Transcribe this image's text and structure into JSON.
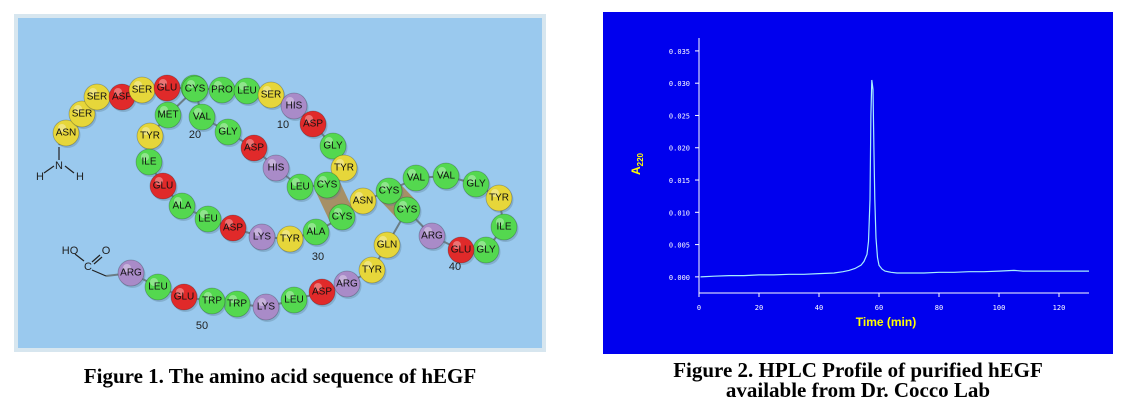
{
  "figure1": {
    "caption": "Figure 1. The amino acid sequence of hEGF",
    "colors": {
      "background": "#9ac9ee",
      "border": "#d7e6ef",
      "bond": "#a8864e",
      "GLU": "#e02a2a",
      "ASP": "#e02a2a",
      "ARG": "#a98bc8",
      "LYS": "#a98bc8",
      "HIS": "#a98bc8",
      "ASN": "#e6d63a",
      "SER": "#e6d63a",
      "TYR": "#e6d63a",
      "GLN": "#e6d63a",
      "default": "#54d84f"
    },
    "residues": [
      {
        "n": 1,
        "name": "ASN"
      },
      {
        "n": 2,
        "name": "SER"
      },
      {
        "n": 3,
        "name": "SER"
      },
      {
        "n": 4,
        "name": "ASP"
      },
      {
        "n": 5,
        "name": "SER"
      },
      {
        "n": 6,
        "name": "GLU"
      },
      {
        "n": 7,
        "name": "CYS"
      },
      {
        "n": 8,
        "name": "PRO"
      },
      {
        "n": 9,
        "name": "LEU"
      },
      {
        "n": 10,
        "name": "SER"
      },
      {
        "n": 11,
        "name": "HIS"
      },
      {
        "n": 12,
        "name": "ASP"
      },
      {
        "n": 13,
        "name": "GLY"
      },
      {
        "n": 14,
        "name": "TYR"
      },
      {
        "n": 15,
        "name": "CYS"
      },
      {
        "n": 16,
        "name": "LEU"
      },
      {
        "n": 17,
        "name": "HIS"
      },
      {
        "n": 18,
        "name": "ASP"
      },
      {
        "n": 19,
        "name": "GLY"
      },
      {
        "n": 20,
        "name": "VAL"
      },
      {
        "n": 21,
        "name": "CYS"
      },
      {
        "n": 22,
        "name": "MET"
      },
      {
        "n": 23,
        "name": "TYR"
      },
      {
        "n": 24,
        "name": "ILE"
      },
      {
        "n": 25,
        "name": "GLU"
      },
      {
        "n": 26,
        "name": "ALA"
      },
      {
        "n": 27,
        "name": "LEU"
      },
      {
        "n": 28,
        "name": "ASP"
      },
      {
        "n": 29,
        "name": "LYS"
      },
      {
        "n": 30,
        "name": "TYR"
      },
      {
        "n": 31,
        "name": "ALA"
      },
      {
        "n": 32,
        "name": "CYS"
      },
      {
        "n": 33,
        "name": "ASN"
      },
      {
        "n": 34,
        "name": "CYS"
      },
      {
        "n": 35,
        "name": "VAL"
      },
      {
        "n": 36,
        "name": "VAL"
      },
      {
        "n": 37,
        "name": "GLY"
      },
      {
        "n": 38,
        "name": "TYR"
      },
      {
        "n": 39,
        "name": "ILE"
      },
      {
        "n": 40,
        "name": "GLY"
      },
      {
        "n": 41,
        "name": "GLU"
      },
      {
        "n": 42,
        "name": "ARG"
      },
      {
        "n": 43,
        "name": "CYS"
      },
      {
        "n": 44,
        "name": "GLN"
      },
      {
        "n": 45,
        "name": "TYR"
      },
      {
        "n": 46,
        "name": "ARG"
      },
      {
        "n": 47,
        "name": "ASP"
      },
      {
        "n": 48,
        "name": "LEU"
      },
      {
        "n": 49,
        "name": "LYS"
      },
      {
        "n": 50,
        "name": "TRP"
      },
      {
        "n": 51,
        "name": "TRP"
      },
      {
        "n": 52,
        "name": "GLU"
      },
      {
        "n": 53,
        "name": "LEU"
      },
      {
        "n": 54,
        "name": "ARG"
      }
    ],
    "number_labels": [
      "10",
      "20",
      "30",
      "40",
      "50"
    ],
    "n_terminus": {
      "N": "N",
      "H_left": "H",
      "H_right": "H"
    },
    "c_terminus": {
      "HO": "HO",
      "C": "C",
      "O": "O"
    },
    "disulfide_bonds": [
      [
        7,
        21
      ],
      [
        15,
        32
      ],
      [
        34,
        43
      ]
    ]
  },
  "figure2": {
    "caption_line1": "Figure 2. HPLC Profile of purified hEGF",
    "caption_line2": "available from Dr. Cocco Lab",
    "colors": {
      "background": "#0000ee",
      "axes": "#ffffff",
      "trace": "#a8eefe",
      "label": "#ffff00",
      "tick_text": "#ffffff"
    },
    "chart_data": {
      "type": "line",
      "xlabel": "Time (min)",
      "ylabel": "A",
      "ylabel_sub": "220",
      "xlim": [
        0,
        130
      ],
      "ylim": [
        -0.0025,
        0.037
      ],
      "xticks": [
        0,
        20,
        40,
        60,
        80,
        100,
        120
      ],
      "xtick_labels": [
        "0",
        "20",
        "40",
        "60",
        "80",
        "100",
        "120"
      ],
      "yticks": [
        0.0,
        0.005,
        0.01,
        0.015,
        0.02,
        0.025,
        0.03,
        0.035
      ],
      "ytick_labels": [
        "0.000",
        "0.005",
        "0.010",
        "0.015",
        "0.020",
        "0.025",
        "0.030",
        "0.035"
      ],
      "grid": false,
      "series": [
        {
          "x": [
            0.5,
            5,
            10,
            15,
            20,
            25,
            30,
            35,
            40,
            45,
            48,
            50,
            52,
            54,
            55,
            56,
            56.5,
            57,
            57.3,
            57.6,
            58,
            58.3,
            58.6,
            59,
            59.5,
            60,
            61,
            62,
            64,
            66,
            70,
            75,
            80,
            85,
            90,
            95,
            100,
            105,
            108,
            110,
            115,
            120,
            125,
            130
          ],
          "y": [
            0.0,
            0.0001,
            0.0002,
            0.0002,
            0.0003,
            0.0003,
            0.0004,
            0.0004,
            0.0005,
            0.0006,
            0.0008,
            0.001,
            0.0013,
            0.0018,
            0.0024,
            0.0035,
            0.0055,
            0.012,
            0.025,
            0.0305,
            0.029,
            0.02,
            0.012,
            0.006,
            0.003,
            0.0018,
            0.0012,
            0.0009,
            0.0007,
            0.0006,
            0.0006,
            0.0006,
            0.0007,
            0.0007,
            0.0008,
            0.0008,
            0.0009,
            0.001,
            0.0009,
            0.0009,
            0.0009,
            0.0009,
            0.0009,
            0.0009
          ]
        }
      ]
    }
  }
}
